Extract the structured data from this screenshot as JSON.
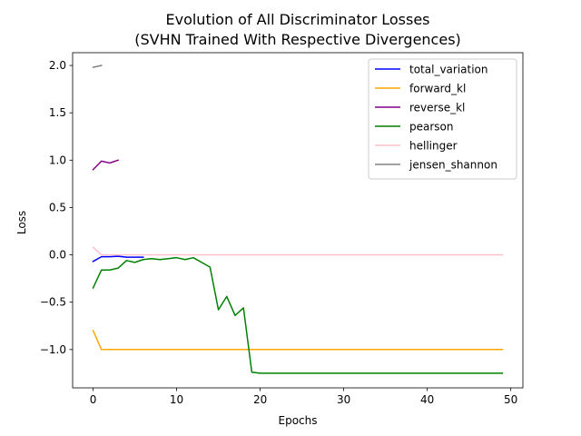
{
  "chart_data": {
    "type": "line",
    "title": "Evolution of All Discriminator Losses\n(SVHN Trained With Respective Divergences)",
    "xlabel": "Epochs",
    "ylabel": "Loss",
    "xlim": [
      -2.45,
      51.45
    ],
    "ylim": [
      -1.405,
      2.135
    ],
    "xticks": [
      0,
      10,
      20,
      30,
      40,
      50
    ],
    "yticks": [
      2.0,
      1.5,
      1.0,
      0.5,
      0.0,
      -0.5,
      -1.0
    ],
    "ytick_labels": [
      "2.0",
      "1.5",
      "1.0",
      "0.5",
      "0.0",
      "−0.5",
      "−1.0"
    ],
    "grid": false,
    "legend_position": "upper right",
    "series": [
      {
        "name": "total_variation",
        "color": "#0000ff",
        "x": [
          0,
          1,
          2,
          3,
          4,
          5,
          6
        ],
        "y": [
          -0.07,
          -0.02,
          -0.02,
          -0.015,
          -0.025,
          -0.025,
          -0.025
        ]
      },
      {
        "name": "forward_kl",
        "color": "#ffa500",
        "x": [
          0,
          1,
          2,
          3,
          4,
          5,
          6,
          7,
          8,
          9,
          10,
          11,
          12,
          13,
          14,
          15,
          16,
          17,
          18,
          19,
          20,
          21,
          22,
          23,
          24,
          25,
          26,
          27,
          28,
          29,
          30,
          31,
          32,
          33,
          34,
          35,
          36,
          37,
          38,
          39,
          40,
          41,
          42,
          43,
          44,
          45,
          46,
          47,
          48,
          49
        ],
        "y": [
          -0.8,
          -1.0,
          -1.0,
          -1.0,
          -1.0,
          -1.0,
          -1.0,
          -1.0,
          -1.0,
          -1.0,
          -1.0,
          -1.0,
          -1.0,
          -1.0,
          -1.0,
          -1.0,
          -1.0,
          -1.0,
          -1.0,
          -1.0,
          -1.0,
          -1.0,
          -1.0,
          -1.0,
          -1.0,
          -1.0,
          -1.0,
          -1.0,
          -1.0,
          -1.0,
          -1.0,
          -1.0,
          -1.0,
          -1.0,
          -1.0,
          -1.0,
          -1.0,
          -1.0,
          -1.0,
          -1.0,
          -1.0,
          -1.0,
          -1.0,
          -1.0,
          -1.0,
          -1.0,
          -1.0,
          -1.0,
          -1.0,
          -1.0
        ]
      },
      {
        "name": "reverse_kl",
        "color": "#800080",
        "x": [
          0,
          1,
          2,
          3
        ],
        "y": [
          0.9,
          0.99,
          0.97,
          1.0
        ]
      },
      {
        "name": "pearson",
        "color": "#008000",
        "x": [
          0,
          1,
          2,
          3,
          4,
          5,
          6,
          7,
          8,
          9,
          10,
          11,
          12,
          13,
          14,
          15,
          16,
          17,
          18,
          19,
          20,
          21,
          22,
          23,
          24,
          25,
          26,
          27,
          28,
          29,
          30,
          31,
          32,
          33,
          34,
          35,
          36,
          37,
          38,
          39,
          40,
          41,
          42,
          43,
          44,
          45,
          46,
          47,
          48,
          49
        ],
        "y": [
          -0.35,
          -0.16,
          -0.16,
          -0.14,
          -0.06,
          -0.08,
          -0.05,
          -0.04,
          -0.05,
          -0.04,
          -0.03,
          -0.05,
          -0.03,
          -0.08,
          -0.13,
          -0.58,
          -0.44,
          -0.64,
          -0.56,
          -1.24,
          -1.25,
          -1.25,
          -1.25,
          -1.25,
          -1.25,
          -1.25,
          -1.25,
          -1.25,
          -1.25,
          -1.25,
          -1.25,
          -1.25,
          -1.25,
          -1.25,
          -1.25,
          -1.25,
          -1.25,
          -1.25,
          -1.25,
          -1.25,
          -1.25,
          -1.25,
          -1.25,
          -1.25,
          -1.25,
          -1.25,
          -1.25,
          -1.25,
          -1.25,
          -1.25
        ]
      },
      {
        "name": "hellinger",
        "color": "#ffc0cb",
        "x": [
          0,
          1,
          2,
          3,
          4,
          5,
          6,
          7,
          8,
          9,
          10,
          11,
          12,
          13,
          14,
          15,
          16,
          17,
          18,
          19,
          20,
          21,
          22,
          23,
          24,
          25,
          26,
          27,
          28,
          29,
          30,
          31,
          32,
          33,
          34,
          35,
          36,
          37,
          38,
          39,
          40,
          41,
          42,
          43,
          44,
          45,
          46,
          47,
          48,
          49
        ],
        "y": [
          0.08,
          0.0,
          0.0,
          0.0,
          0.0,
          0.0,
          0.0,
          0.0,
          0.0,
          0.0,
          0.0,
          0.0,
          0.0,
          0.0,
          0.0,
          0.0,
          0.0,
          0.0,
          0.0,
          0.0,
          0.0,
          0.0,
          0.0,
          0.0,
          0.0,
          0.0,
          0.0,
          0.0,
          0.0,
          0.0,
          0.0,
          0.0,
          0.0,
          0.0,
          0.0,
          0.0,
          0.0,
          0.0,
          0.0,
          0.0,
          0.0,
          0.0,
          0.0,
          0.0,
          0.0,
          0.0,
          0.0,
          0.0,
          0.0,
          0.0
        ]
      },
      {
        "name": "jensen_shannon",
        "color": "#808080",
        "x": [
          0,
          1
        ],
        "y": [
          1.98,
          2.0
        ]
      }
    ]
  }
}
